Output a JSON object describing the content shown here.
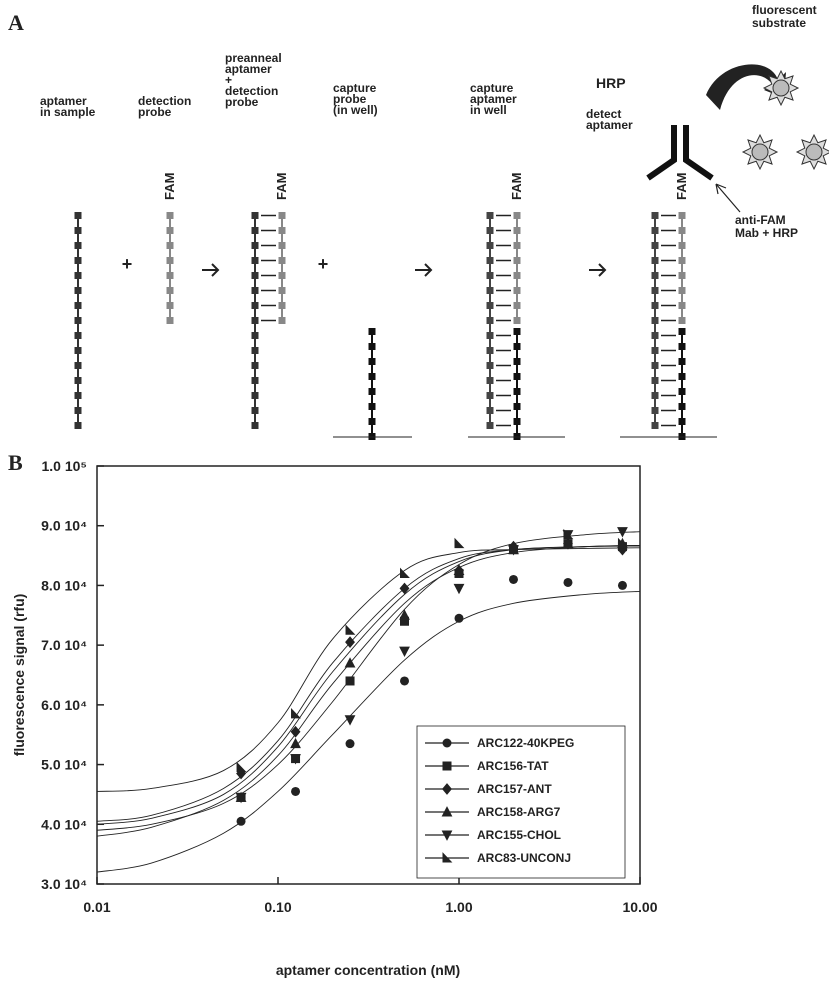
{
  "panel_a": {
    "label": "A",
    "steps": [
      [
        "aptamer",
        "in sample"
      ],
      [
        "detection",
        "probe"
      ],
      [
        "preanneal",
        "aptamer",
        "+",
        "detection",
        "probe"
      ],
      [
        "capture",
        "probe",
        "(in well)"
      ],
      [
        "capture",
        "aptamer",
        "in well"
      ],
      [
        "detect",
        "aptamer"
      ]
    ],
    "fam": [
      "FAM",
      "FAM",
      "FAM",
      "FAM"
    ],
    "plus": [
      "+",
      "+"
    ],
    "hrp": "HRP",
    "substrate": [
      "fluorescent",
      "substrate"
    ],
    "antibody": [
      "anti-FAM",
      "Mab + HRP"
    ]
  },
  "panel_b": {
    "label": "B"
  },
  "chart_data": {
    "type": "scatter",
    "x_label": "aptamer concentration (nM)",
    "y_label": "fluorescence signal (rfu)",
    "xscale": "log",
    "xlim": [
      0.01,
      10
    ],
    "xticks": [
      0.01,
      {
        "value": 0.1,
        "label": "0.10"
      },
      {
        "value": 1,
        "label": "1.00"
      },
      {
        "value": 10,
        "label": "10.00"
      }
    ],
    "ylim": [
      30000,
      100000
    ],
    "yticks": [
      {
        "value": 30000,
        "label": "3.0 10⁴"
      },
      {
        "value": 40000,
        "label": "4.0 10⁴"
      },
      {
        "value": 50000,
        "label": "5.0 10⁴"
      },
      {
        "value": 60000,
        "label": "6.0 10⁴"
      },
      {
        "value": 70000,
        "label": "7.0 10⁴"
      },
      {
        "value": 80000,
        "label": "8.0 10⁴"
      },
      {
        "value": 90000,
        "label": "9.0 10⁴"
      },
      {
        "value": 100000,
        "label": "1.0 10⁵"
      }
    ],
    "legend": "lower right",
    "x": [
      0.0625,
      0.125,
      0.25,
      0.5,
      1,
      2,
      4,
      8
    ],
    "fit_x": [
      0.01,
      0.02,
      0.05,
      0.1,
      0.2,
      0.5,
      1,
      2,
      5,
      10
    ],
    "series": [
      {
        "name": "ARC122-40KPEG",
        "marker": "circle",
        "color": "#222222",
        "values": [
          40500,
          45500,
          53500,
          64000,
          74500,
          81000,
          80500,
          80000
        ],
        "fit": [
          32000,
          33500,
          38500,
          45500,
          55000,
          67500,
          74000,
          77000,
          78500,
          79000
        ]
      },
      {
        "name": "ARC156-TAT",
        "marker": "square",
        "color": "#222222",
        "values": [
          44500,
          51000,
          64000,
          74000,
          82000,
          86000,
          87000,
          86500
        ],
        "fit": [
          38000,
          39500,
          44000,
          51500,
          63500,
          77000,
          83000,
          85500,
          86500,
          86700
        ]
      },
      {
        "name": "ARC157-ANT",
        "marker": "diamond",
        "color": "#222222",
        "values": [
          48500,
          55500,
          70500,
          79500,
          82500,
          86500,
          87000,
          86000
        ],
        "fit": [
          40500,
          41500,
          46000,
          54000,
          67000,
          79500,
          84500,
          86000,
          86500,
          86600
        ]
      },
      {
        "name": "ARC158-ARG7",
        "marker": "triangle-up",
        "color": "#222222",
        "values": [
          44500,
          53500,
          67000,
          75000,
          82500,
          86000,
          87000,
          87000
        ],
        "fit": [
          40000,
          41000,
          45000,
          53000,
          65500,
          78500,
          84000,
          86000,
          86500,
          86700
        ]
      },
      {
        "name": "ARC155-CHOL",
        "marker": "triangle-down",
        "color": "#222222",
        "values": [
          44500,
          51000,
          57500,
          69000,
          79500,
          86000,
          88500,
          89000
        ],
        "fit": [
          39000,
          40000,
          43500,
          50000,
          60500,
          76000,
          83500,
          87000,
          88500,
          89000
        ]
      },
      {
        "name": "ARC83-UNCONJ",
        "marker": "half-triangle",
        "color": "#222222",
        "values": [
          49500,
          58500,
          72500,
          82000,
          87000,
          86000,
          88500,
          87000
        ],
        "fit": [
          45500,
          46000,
          49000,
          57000,
          71000,
          82500,
          85500,
          86000,
          86200,
          86300
        ]
      }
    ]
  }
}
